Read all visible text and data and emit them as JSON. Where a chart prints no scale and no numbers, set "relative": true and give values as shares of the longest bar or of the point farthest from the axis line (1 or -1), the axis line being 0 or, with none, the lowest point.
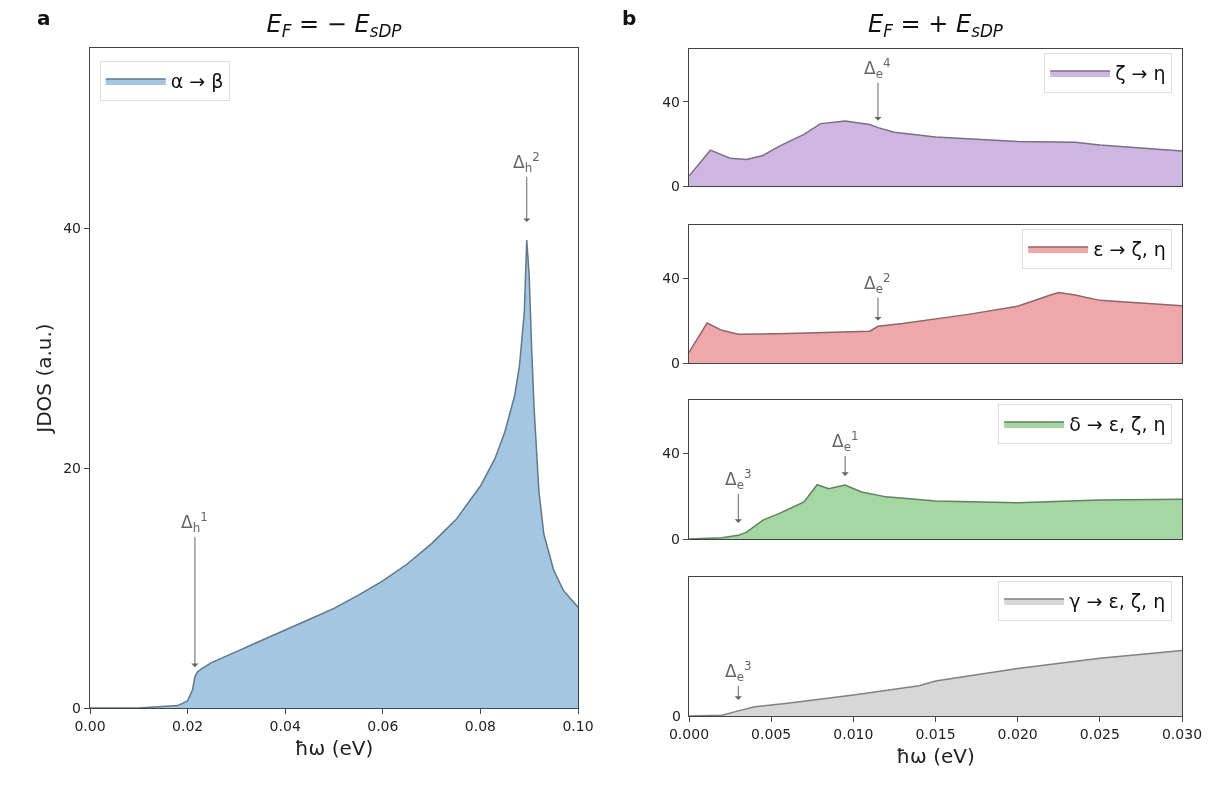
{
  "chart_data": [
    {
      "type": "area",
      "title": "E$_{F}$ = − E$_{sDP}$",
      "xlabel": "ħω (eV)",
      "ylabel": "JDOS (a.u.)",
      "annotations": [
        "a",
        {
          "text": "Δ$_{h}$$^{1}$",
          "x": 0.0215,
          "y": 3.4
        },
        {
          "text": "Δ$_{h}$$^{2}$",
          "x": 0.0895,
          "y": 40.5
        }
      ],
      "x": [
        0,
        0.01,
        0.018,
        0.02,
        0.021,
        0.0215,
        0.022,
        0.023,
        0.025,
        0.03,
        0.035,
        0.04,
        0.045,
        0.05,
        0.055,
        0.06,
        0.065,
        0.07,
        0.075,
        0.08,
        0.083,
        0.085,
        0.087,
        0.088,
        0.089,
        0.0895,
        0.09,
        0.0905,
        0.091,
        0.092,
        0.093,
        0.095,
        0.097,
        0.1
      ],
      "series": [
        {
          "name": "α → β",
          "color": "#a3c6e2",
          "values": [
            0,
            0,
            0.2,
            0.6,
            1.5,
            2.6,
            3.0,
            3.3,
            3.8,
            4.7,
            5.6,
            6.5,
            7.4,
            8.3,
            9.4,
            10.6,
            12.0,
            13.7,
            15.7,
            18.5,
            20.8,
            23,
            26,
            28.5,
            33,
            39,
            36,
            30,
            25,
            18,
            14.5,
            11.5,
            9.8,
            8.4
          ]
        }
      ],
      "xlim": [
        0,
        0.1
      ],
      "xticks": [
        {
          "value": 0,
          "label": "0.00"
        },
        {
          "value": 0.02,
          "label": "0.02"
        },
        {
          "value": 0.04,
          "label": "0.04"
        },
        {
          "value": 0.06,
          "label": "0.06"
        },
        {
          "value": 0.08,
          "label": "0.08"
        },
        {
          "value": 0.1,
          "label": "0.10"
        }
      ],
      "ylim": [
        0,
        55
      ],
      "yticks": [
        0,
        20,
        40
      ],
      "grid": false,
      "legend": "top left"
    },
    {
      "type": "area",
      "title": "E$_{F}$ = + E$_{sDP}$",
      "annotations": [
        "b",
        {
          "text": "Δ$_{e}$$^{4}$",
          "x": 0.0115,
          "y": 31
        }
      ],
      "x": [
        0,
        0.0013,
        0.0025,
        0.0035,
        0.0045,
        0.0055,
        0.007,
        0.008,
        0.0095,
        0.011,
        0.0115,
        0.0125,
        0.015,
        0.02,
        0.0235,
        0.025,
        0.03
      ],
      "series": [
        {
          "name": "ζ → η",
          "color": "#cdb7e0",
          "values": [
            4.7,
            17,
            13.2,
            12.6,
            14.5,
            18.9,
            24.5,
            29.6,
            30.8,
            29.2,
            27.7,
            25.5,
            23.2,
            21.1,
            20.8,
            19.4,
            16.6
          ]
        }
      ],
      "xlim": [
        0,
        0.03
      ],
      "ylim": [
        0,
        65
      ],
      "yticks": [
        0,
        40
      ],
      "grid": false,
      "legend": "top right",
      "tick_labels": "y"
    },
    {
      "type": "area",
      "annotations": [
        {
          "text": "Δ$_{e}$$^{2}$",
          "x": 0.0115,
          "y": 20
        }
      ],
      "x": [
        0,
        0.0011,
        0.002,
        0.003,
        0.006,
        0.011,
        0.0115,
        0.013,
        0.017,
        0.02,
        0.022,
        0.0225,
        0.0235,
        0.025,
        0.03
      ],
      "series": [
        {
          "name": "ε → ζ, η",
          "color": "#eea8ac",
          "values": [
            5,
            18.8,
            15.4,
            13.5,
            13.9,
            15,
            17.3,
            18.6,
            22.9,
            26.7,
            32,
            33.2,
            32,
            29.5,
            27
          ]
        }
      ],
      "xlim": [
        0,
        0.03
      ],
      "ylim": [
        0,
        65
      ],
      "yticks": [
        0,
        40
      ],
      "grid": false,
      "legend": "top right",
      "tick_labels": "y"
    },
    {
      "type": "area",
      "annotations": [
        {
          "text": "Δ$_{e}$$^{3}$",
          "x": 0.003,
          "y": 7.5
        },
        {
          "text": "Δ$_{e}$$^{1}$",
          "x": 0.0095,
          "y": 29.5
        }
      ],
      "x": [
        0,
        0.002,
        0.003,
        0.0035,
        0.0045,
        0.0055,
        0.007,
        0.0078,
        0.0085,
        0.0095,
        0.0105,
        0.012,
        0.015,
        0.02,
        0.025,
        0.03
      ],
      "series": [
        {
          "name": "δ → ε, ζ, η",
          "color": "#a4d7a1",
          "values": [
            0,
            0.6,
            1.7,
            3.2,
            8.8,
            12,
            17.3,
            25.4,
            23.5,
            25.2,
            22,
            19.7,
            17.8,
            16.9,
            18.2,
            18.6
          ]
        }
      ],
      "xlim": [
        0,
        0.03
      ],
      "ylim": [
        0,
        65
      ],
      "yticks": [
        0,
        40
      ],
      "grid": false,
      "legend": "top right",
      "tick_labels": "y"
    },
    {
      "type": "area",
      "xlabel": "ħω (eV)",
      "relative": true,
      "annotations": [
        "0",
        {
          "text": "Δ$_{e}$$^{3}$",
          "x": 0.003,
          "y": 0.245
        }
      ],
      "x": [
        0,
        0.002,
        0.003,
        0.004,
        0.006,
        0.01,
        0.014,
        0.015,
        0.02,
        0.025,
        0.03
      ],
      "series": [
        {
          "name": "γ → ε, ζ, η",
          "color": "#d7d7d7",
          "values": [
            0,
            0.013,
            0.078,
            0.14,
            0.196,
            0.32,
            0.461,
            0.533,
            0.725,
            0.879,
            1
          ]
        }
      ],
      "xlim": [
        0,
        0.03
      ],
      "xticks": [
        {
          "value": 0,
          "label": "0.000"
        },
        {
          "value": 0.005,
          "label": "0.005"
        },
        {
          "value": 0.01,
          "label": "0.010"
        },
        {
          "value": 0.015,
          "label": "0.015"
        },
        {
          "value": 0.02,
          "label": "0.020"
        },
        {
          "value": 0.025,
          "label": "0.025"
        },
        {
          "value": 0.03,
          "label": "0.030"
        }
      ],
      "grid": false,
      "legend": "top right"
    }
  ]
}
